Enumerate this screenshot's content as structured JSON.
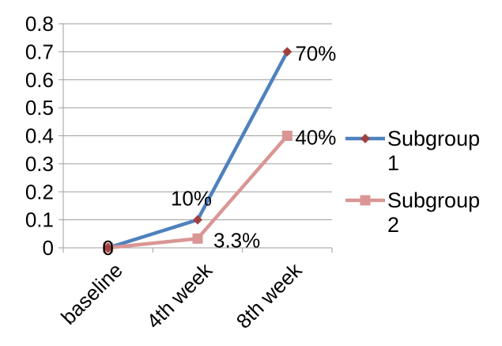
{
  "chart_data": {
    "type": "line",
    "categories": [
      "baseline",
      "4th week",
      "8th week"
    ],
    "ylim": [
      0,
      0.8
    ],
    "yticks": [
      "0",
      "0.1",
      "0.2",
      "0.3",
      "0.4",
      "0.5",
      "0.6",
      "0.7",
      "0.8"
    ],
    "grid": "horizontal",
    "legend": "right",
    "series": [
      {
        "name": "Subgroup 1",
        "values": [
          0,
          0.1,
          0.7
        ],
        "labels": [
          "0",
          "10%",
          "70%"
        ],
        "color": "#4F81BD",
        "marker_color": "#A0403E",
        "marker": "diamond"
      },
      {
        "name": "Subgroup 2",
        "values": [
          0,
          0.033,
          0.4
        ],
        "labels": [
          "",
          "3.3%",
          "40%"
        ],
        "color": "#D99694",
        "marker_color": "#D99694",
        "marker": "square"
      }
    ]
  }
}
